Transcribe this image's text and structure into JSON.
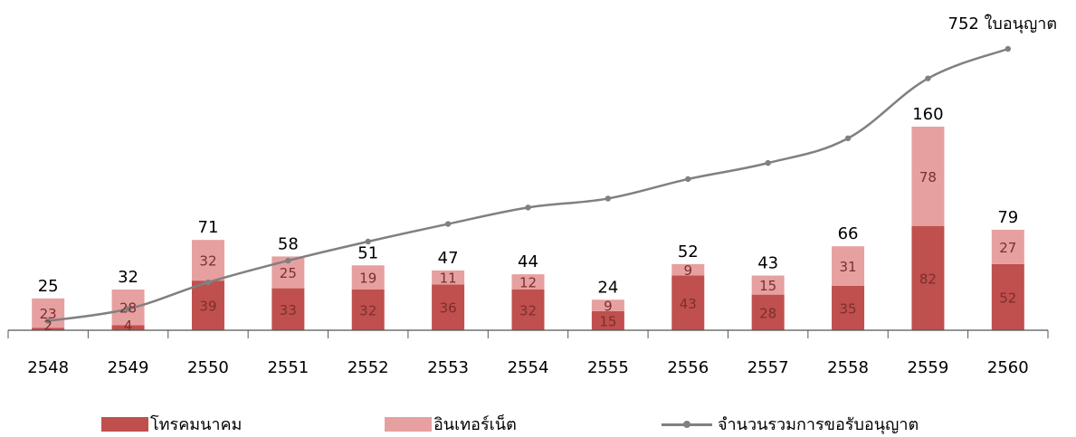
{
  "colors": {
    "telecom": "#c0504d",
    "internet": "#e6a0a0",
    "line": "#808080",
    "axis": "#555555",
    "segment_label": "#7a2f2f"
  },
  "chart_data": {
    "type": "bar",
    "stacked": true,
    "categories": [
      "2548",
      "2549",
      "2550",
      "2551",
      "2552",
      "2553",
      "2554",
      "2555",
      "2556",
      "2557",
      "2558",
      "2559",
      "2560"
    ],
    "series": [
      {
        "name": "โทรคมนาคม",
        "values": [
          2,
          4,
          39,
          33,
          32,
          36,
          32,
          15,
          43,
          28,
          35,
          82,
          52
        ]
      },
      {
        "name": "อินเทอร์เน็ต",
        "values": [
          23,
          28,
          32,
          25,
          19,
          11,
          12,
          9,
          9,
          15,
          31,
          78,
          27
        ]
      }
    ],
    "totals": [
      25,
      32,
      71,
      58,
      51,
      47,
      44,
      24,
      52,
      43,
      66,
      160,
      79
    ],
    "line_series": {
      "name": "จำนวนรวมการขอรับอนุญาต",
      "values": [
        25,
        57,
        128,
        186,
        237,
        284,
        328,
        352,
        404,
        447,
        513,
        673,
        752
      ],
      "end_label": "752 ใบอนุญาต"
    },
    "bar_ylim": [
      0,
      190
    ],
    "line_ylim": [
      0,
      800
    ],
    "grid": false,
    "legend_position": "bottom"
  }
}
